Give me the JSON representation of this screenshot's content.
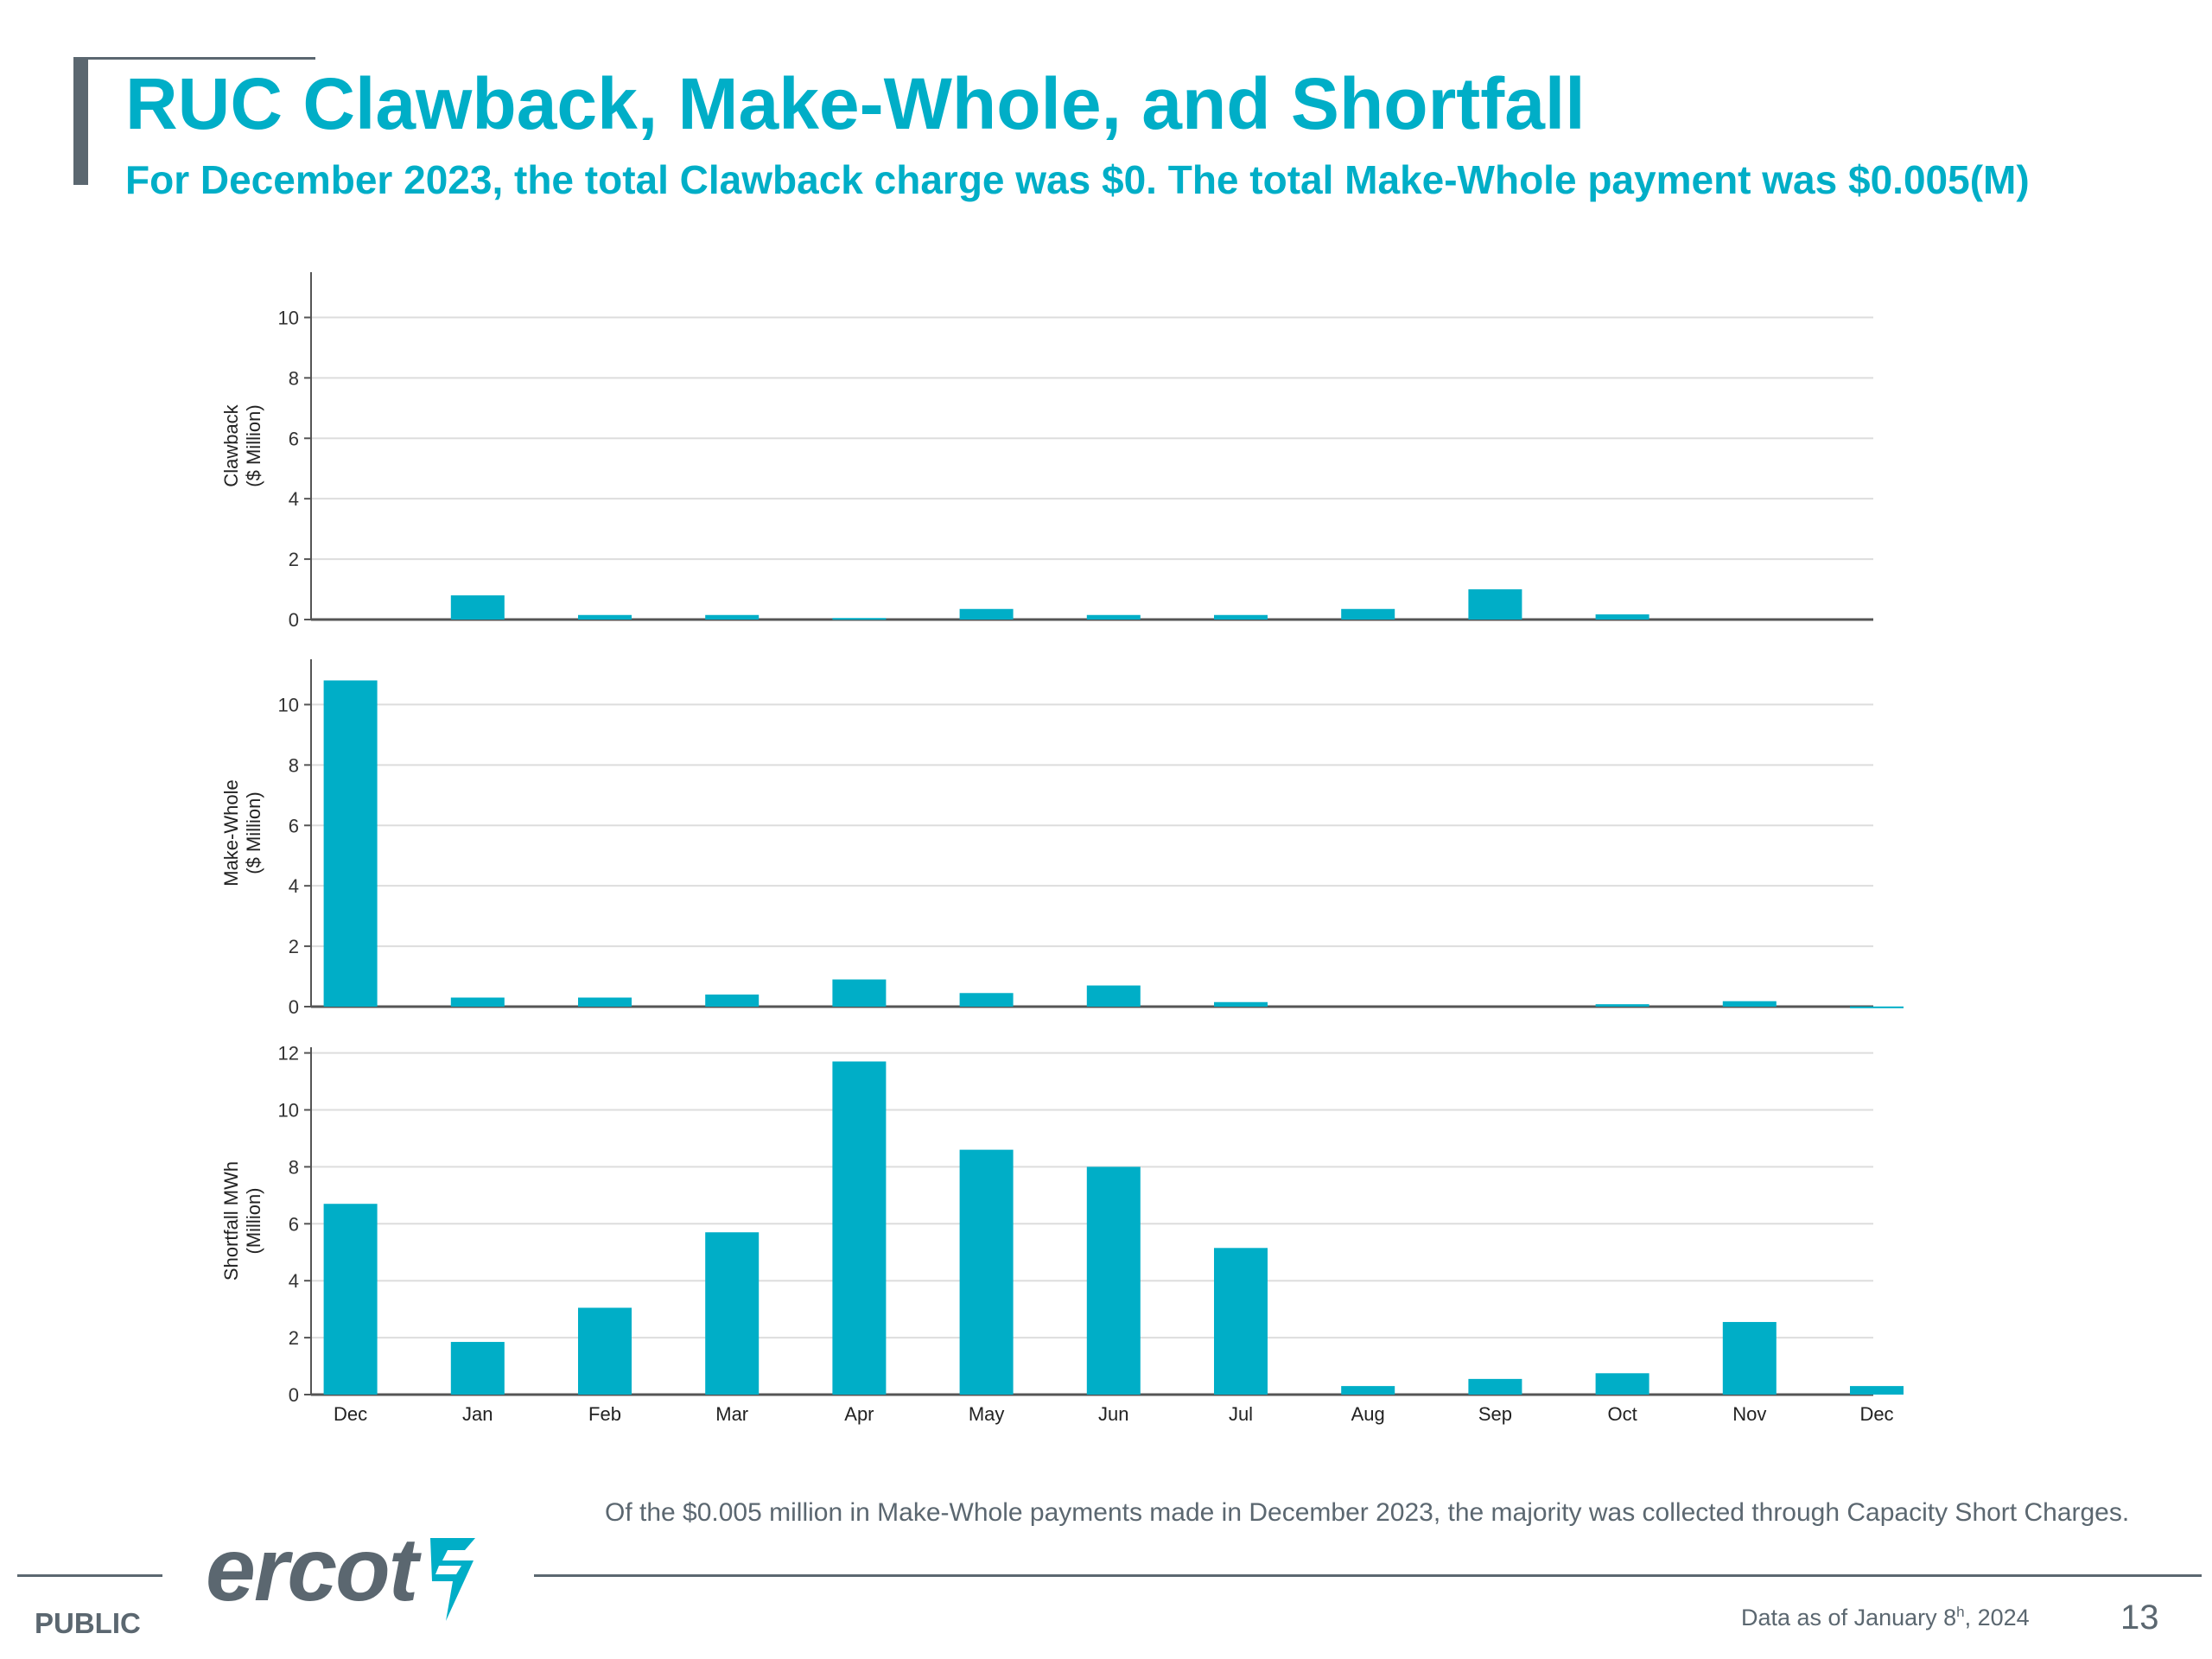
{
  "slide": {
    "title": "RUC Clawback, Make-Whole, and Shortfall",
    "subtitle": "For December 2023, the total Clawback charge was $0. The total Make-Whole payment was $0.005(M)",
    "note": "Of the $0.005 million in Make-Whole payments made in December 2023, the majority was collected through Capacity Short Charges.",
    "footer": {
      "public_label": "PUBLIC",
      "logo_text": "ercot",
      "data_as_of": "Data as of January 8",
      "data_as_of_sup": "h",
      "data_as_of_year": ", 2024",
      "page_number": "13"
    }
  },
  "colors": {
    "bar": "#00aec7",
    "title": "#00aec7",
    "text": "#5b6770",
    "axis": "#555555",
    "grid": "#dddddd"
  },
  "chart_data": [
    {
      "type": "bar",
      "ylabel": [
        "Clawback",
        "($ Million)"
      ],
      "categories": [
        "Dec",
        "Jan",
        "Feb",
        "Mar",
        "Apr",
        "May",
        "Jun",
        "Jul",
        "Aug",
        "Sep",
        "Oct",
        "Nov",
        "Dec"
      ],
      "values": [
        0,
        0.8,
        0.15,
        0.15,
        0.05,
        0.35,
        0.15,
        0.15,
        0.35,
        1.0,
        0.17,
        0,
        0
      ],
      "yticks": [
        0,
        2,
        4,
        6,
        8,
        10
      ],
      "ylim": [
        0,
        11.5
      ],
      "grid": true
    },
    {
      "type": "bar",
      "ylabel": [
        "Make-Whole",
        "($ Million)"
      ],
      "categories": [
        "Dec",
        "Jan",
        "Feb",
        "Mar",
        "Apr",
        "May",
        "Jun",
        "Jul",
        "Aug",
        "Sep",
        "Oct",
        "Nov",
        "Dec"
      ],
      "values": [
        10.8,
        0.3,
        0.3,
        0.4,
        0.9,
        0.45,
        0.7,
        0.15,
        0,
        0,
        0.08,
        0.18,
        0.005
      ],
      "yticks": [
        0,
        2,
        4,
        6,
        8,
        10
      ],
      "ylim": [
        0,
        11.5
      ],
      "grid": true
    },
    {
      "type": "bar",
      "ylabel": [
        "Shortfall MWh",
        "(Million)"
      ],
      "categories": [
        "Dec",
        "Jan",
        "Feb",
        "Mar",
        "Apr",
        "May",
        "Jun",
        "Jul",
        "Aug",
        "Sep",
        "Oct",
        "Nov",
        "Dec"
      ],
      "values": [
        6.7,
        1.85,
        3.05,
        5.7,
        11.7,
        8.6,
        8.0,
        5.15,
        0.3,
        0.55,
        0.75,
        2.55,
        0.3
      ],
      "yticks": [
        0,
        2,
        4,
        6,
        8,
        10,
        12
      ],
      "ylim": [
        0,
        12.2
      ],
      "grid": true,
      "show_xlabels": true
    }
  ]
}
